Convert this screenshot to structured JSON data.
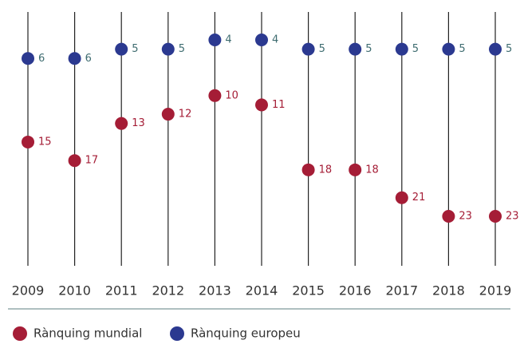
{
  "chart_data": {
    "type": "dot",
    "categories": [
      "2009",
      "2010",
      "2011",
      "2012",
      "2013",
      "2014",
      "2015",
      "2016",
      "2017",
      "2018",
      "2019"
    ],
    "series": [
      {
        "name": "Rànquing mundial",
        "color": "#a51d36",
        "values": [
          15,
          17,
          13,
          12,
          10,
          11,
          18,
          18,
          21,
          23,
          23
        ]
      },
      {
        "name": "Rànquing europeu",
        "color": "#2b3990",
        "values": [
          6,
          6,
          5,
          5,
          4,
          4,
          5,
          5,
          5,
          5,
          5
        ]
      }
    ],
    "y_inverted": true
  }
}
